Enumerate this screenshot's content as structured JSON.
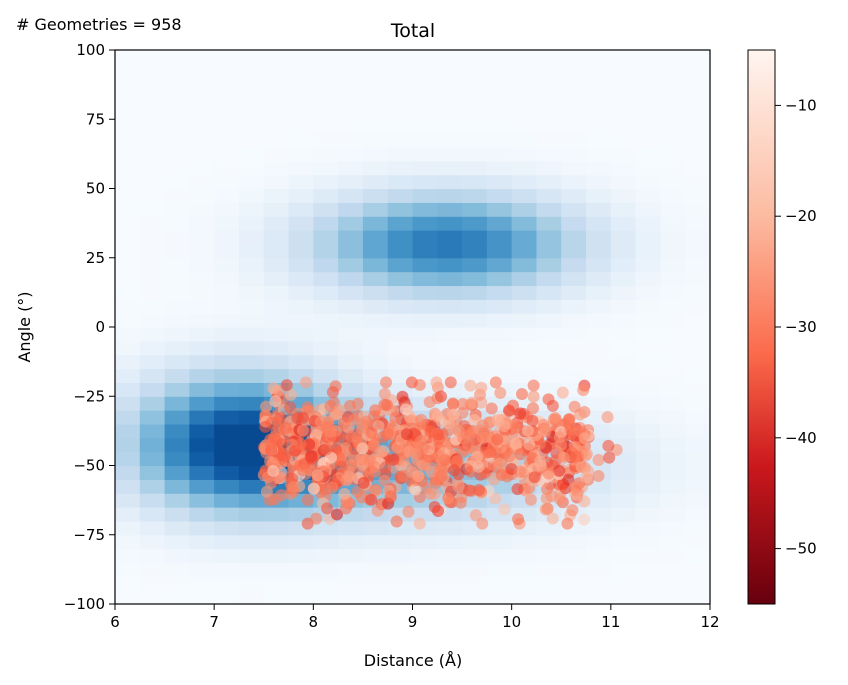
{
  "annotation": "# Geometries = 958",
  "chart_data": {
    "type": "heatmap",
    "title": "Total",
    "xlabel": "Distance (Å)",
    "ylabel": "Angle (°)",
    "xlim": [
      6,
      12
    ],
    "ylim": [
      -100,
      100
    ],
    "xticks": [
      6,
      7,
      8,
      9,
      10,
      11,
      12
    ],
    "xtick_labels": [
      "6",
      "7",
      "8",
      "9",
      "10",
      "11",
      "12"
    ],
    "yticks": [
      -100,
      -75,
      -50,
      -25,
      0,
      25,
      50,
      75,
      100
    ],
    "ytick_labels": [
      "−100",
      "−75",
      "−50",
      "−25",
      "0",
      "25",
      "50",
      "75",
      "100"
    ],
    "grid": false,
    "background_heatmap": {
      "colormap": "Blues",
      "bins_x": 24,
      "bins_y": 40,
      "density_modes": [
        {
          "x": 7.25,
          "y": -41,
          "sx": 0.75,
          "sy": 17,
          "weight": 1.0
        },
        {
          "x": 9.35,
          "y": 30,
          "sx": 0.95,
          "sy": 13,
          "weight": 0.85
        },
        {
          "x": 9.0,
          "y": -50,
          "sx": 1.3,
          "sy": 14,
          "weight": 0.55
        }
      ]
    },
    "scatter": {
      "count": 958,
      "colormap": "Reds_r",
      "alpha": 0.6,
      "x_range": [
        7.5,
        11.15
      ],
      "y_range": [
        -71,
        -20
      ],
      "value_range": [
        -55,
        -5
      ]
    },
    "colorbar": {
      "ticks": [
        -50,
        -40,
        -30,
        -20,
        -10
      ],
      "tick_labels": [
        "−50",
        "−40",
        "−30",
        "−20",
        "−10"
      ],
      "range": [
        -55,
        -5
      ]
    }
  }
}
